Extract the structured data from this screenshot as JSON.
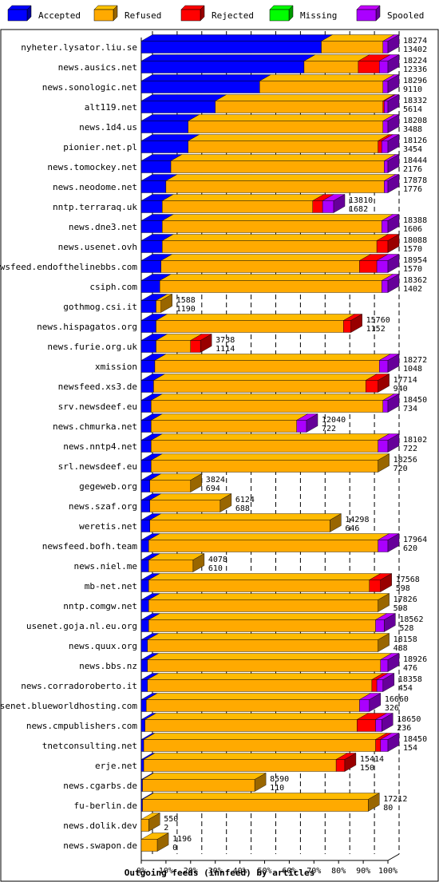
{
  "chart_data": {
    "type": "bar",
    "orientation": "horizontal",
    "stacked": true,
    "value_unit": "percent of offered articles",
    "xlabel": "Outgoing feeds (innfeed) by articles",
    "xlim": [
      0,
      100
    ],
    "x_ticks": [
      "0%",
      "10%",
      "20%",
      "30%",
      "40%",
      "50%",
      "60%",
      "70%",
      "80%",
      "90%",
      "100%"
    ],
    "grid": true,
    "legend_position": "top",
    "series": [
      {
        "name": "Accepted",
        "color": "#0000ff"
      },
      {
        "name": "Refused",
        "color": "#ffaa00"
      },
      {
        "name": "Rejected",
        "color": "#ff0000"
      },
      {
        "name": "Missing",
        "color": "#00ff00"
      },
      {
        "name": "Spooled",
        "color": "#aa00ff"
      }
    ],
    "rows": [
      {
        "name": "nyheter.lysator.liu.se",
        "offered": "18274",
        "accepted": "13402",
        "pct": [
          73,
          25,
          0,
          0,
          2
        ]
      },
      {
        "name": "news.ausics.net",
        "offered": "18224",
        "accepted": "12336",
        "pct": [
          66,
          22,
          8.5,
          0,
          3.5
        ]
      },
      {
        "name": "news.sonologic.net",
        "offered": "18296",
        "accepted": "9110",
        "pct": [
          48,
          50,
          0,
          0,
          2
        ]
      },
      {
        "name": "alt119.net",
        "offered": "18332",
        "accepted": "5614",
        "pct": [
          30,
          68,
          0.5,
          0,
          1.5
        ]
      },
      {
        "name": "news.1d4.us",
        "offered": "18208",
        "accepted": "3488",
        "pct": [
          19,
          79,
          0,
          0,
          2
        ]
      },
      {
        "name": "pionier.net.pl",
        "offered": "18126",
        "accepted": "3454",
        "pct": [
          19,
          77,
          1.5,
          0,
          2.5
        ]
      },
      {
        "name": "news.tomockey.net",
        "offered": "18444",
        "accepted": "2176",
        "pct": [
          12,
          86.5,
          0,
          0,
          1.5
        ]
      },
      {
        "name": "news.neodome.net",
        "offered": "17878",
        "accepted": "1776",
        "pct": [
          10,
          88.5,
          0,
          0,
          1.5
        ]
      },
      {
        "name": "nntp.terraraq.uk",
        "offered": "13810",
        "accepted": "1682",
        "pct": [
          8.5,
          61,
          4,
          0,
          4.5
        ]
      },
      {
        "name": "news.dne3.net",
        "offered": "18388",
        "accepted": "1606",
        "pct": [
          8.5,
          89,
          0,
          0,
          2.5
        ]
      },
      {
        "name": "news.usenet.ovh",
        "offered": "18088",
        "accepted": "1570",
        "pct": [
          8.5,
          87,
          4.5,
          0,
          0
        ]
      },
      {
        "name": "newsfeed.endofthelinebbs.com",
        "offered": "18954",
        "accepted": "1570",
        "pct": [
          8,
          80.5,
          7,
          0,
          4.5
        ]
      },
      {
        "name": "csiph.com",
        "offered": "18362",
        "accepted": "1402",
        "pct": [
          7.5,
          90,
          0,
          0,
          2.5
        ]
      },
      {
        "name": "gothmog.csi.it",
        "offered": "1588",
        "accepted": "1190",
        "pct": [
          6,
          2,
          0,
          0,
          0
        ]
      },
      {
        "name": "news.hispagatos.org",
        "offered": "15760",
        "accepted": "1152",
        "pct": [
          6,
          76,
          3,
          0,
          0
        ]
      },
      {
        "name": "news.furie.org.uk",
        "offered": "3738",
        "accepted": "1114",
        "pct": [
          6,
          14,
          4,
          0,
          0
        ]
      },
      {
        "name": "xmission",
        "offered": "18272",
        "accepted": "1048",
        "pct": [
          5.5,
          91,
          0,
          0,
          3.5
        ]
      },
      {
        "name": "newsfeed.xs3.de",
        "offered": "17714",
        "accepted": "940",
        "pct": [
          5,
          86,
          5,
          0,
          0
        ]
      },
      {
        "name": "srv.newsdeef.eu",
        "offered": "18450",
        "accepted": "734",
        "pct": [
          4,
          94,
          0,
          0,
          2
        ]
      },
      {
        "name": "news.chmurka.net",
        "offered": "12040",
        "accepted": "722",
        "pct": [
          4,
          59,
          0,
          0,
          4
        ]
      },
      {
        "name": "news.nntp4.net",
        "offered": "18102",
        "accepted": "722",
        "pct": [
          4,
          92,
          0,
          0,
          4
        ]
      },
      {
        "name": "srl.newsdeef.eu",
        "offered": "18256",
        "accepted": "720",
        "pct": [
          4,
          92,
          0,
          0,
          0
        ]
      },
      {
        "name": "gegeweb.org",
        "offered": "3824",
        "accepted": "694",
        "pct": [
          3.5,
          16.5,
          0,
          0,
          0
        ]
      },
      {
        "name": "news.szaf.org",
        "offered": "6124",
        "accepted": "688",
        "pct": [
          3.5,
          28.5,
          0,
          0,
          0
        ]
      },
      {
        "name": "weretis.net",
        "offered": "14298",
        "accepted": "646",
        "pct": [
          3.5,
          73,
          0,
          0,
          0
        ]
      },
      {
        "name": "newsfeed.bofh.team",
        "offered": "17964",
        "accepted": "620",
        "pct": [
          3,
          93,
          0,
          0,
          4
        ]
      },
      {
        "name": "news.niel.me",
        "offered": "4078",
        "accepted": "610",
        "pct": [
          3,
          18,
          0,
          0,
          0
        ]
      },
      {
        "name": "mb-net.net",
        "offered": "17568",
        "accepted": "598",
        "pct": [
          3,
          89.5,
          4.5,
          0,
          0
        ]
      },
      {
        "name": "nntp.comgw.net",
        "offered": "17826",
        "accepted": "598",
        "pct": [
          3,
          93,
          0,
          0,
          0
        ]
      },
      {
        "name": "usenet.goja.nl.eu.org",
        "offered": "18562",
        "accepted": "528",
        "pct": [
          3,
          92,
          0,
          0,
          3.5
        ]
      },
      {
        "name": "news.quux.org",
        "offered": "18158",
        "accepted": "488",
        "pct": [
          2.5,
          93.5,
          0,
          0,
          0
        ]
      },
      {
        "name": "news.bbs.nz",
        "offered": "18926",
        "accepted": "476",
        "pct": [
          2.5,
          94.5,
          0,
          0,
          3
        ]
      },
      {
        "name": "news.corradoroberto.it",
        "offered": "18358",
        "accepted": "454",
        "pct": [
          2.5,
          91,
          2,
          0,
          2.5
        ]
      },
      {
        "name": "usenet.blueworldhosting.com",
        "offered": "16660",
        "accepted": "326",
        "pct": [
          2,
          86.5,
          0,
          0,
          4
        ]
      },
      {
        "name": "news.cmpublishers.com",
        "offered": "18650",
        "accepted": "236",
        "pct": [
          1.5,
          86,
          7.5,
          0,
          2.5
        ]
      },
      {
        "name": "tnetconsulting.net",
        "offered": "18450",
        "accepted": "154",
        "pct": [
          1,
          94,
          2,
          0,
          3
        ]
      },
      {
        "name": "erje.net",
        "offered": "15414",
        "accepted": "150",
        "pct": [
          1,
          78,
          3.5,
          0,
          0
        ]
      },
      {
        "name": "news.cgarbs.de",
        "offered": "8590",
        "accepted": "110",
        "pct": [
          0.5,
          45.5,
          0,
          0,
          0
        ]
      },
      {
        "name": "fu-berlin.de",
        "offered": "17212",
        "accepted": "80",
        "pct": [
          0.5,
          91.5,
          0,
          0,
          0
        ]
      },
      {
        "name": "news.dolik.dev",
        "offered": "550",
        "accepted": "2",
        "pct": [
          0,
          3,
          0,
          0,
          0
        ]
      },
      {
        "name": "news.swapon.de",
        "offered": "1196",
        "accepted": "0",
        "pct": [
          0,
          6.5,
          0,
          0,
          0
        ]
      }
    ]
  }
}
